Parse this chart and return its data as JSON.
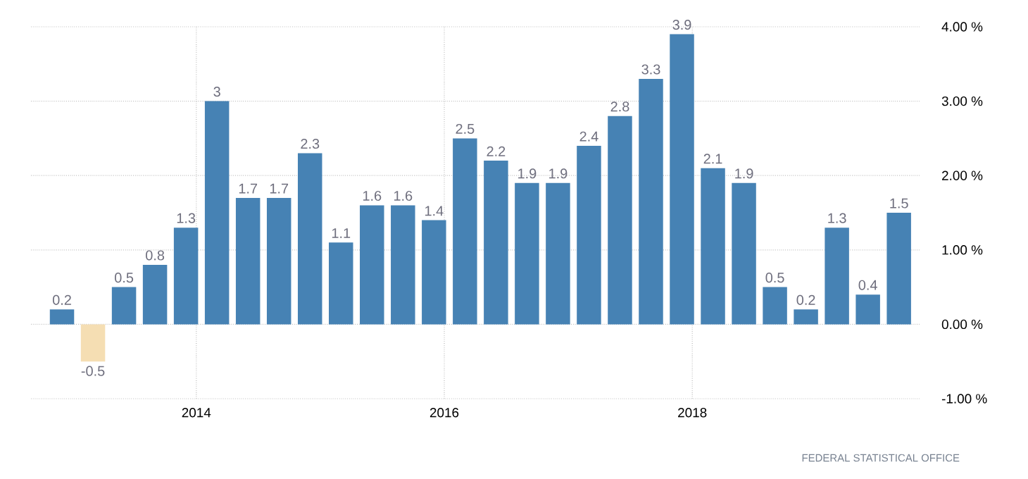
{
  "chart_data": {
    "type": "bar",
    "x": [
      "2012-12",
      "2013-03",
      "2013-06",
      "2013-09",
      "2013-12",
      "2014-03",
      "2014-06",
      "2014-09",
      "2014-12",
      "2015-03",
      "2015-06",
      "2015-09",
      "2015-12",
      "2016-03",
      "2016-06",
      "2016-09",
      "2016-12",
      "2017-03",
      "2017-06",
      "2017-09",
      "2017-12",
      "2018-03",
      "2018-06",
      "2018-09",
      "2018-12",
      "2019-03",
      "2019-06",
      "2019-09"
    ],
    "values": [
      0.2,
      -0.5,
      0.5,
      0.8,
      1.3,
      3,
      1.7,
      1.7,
      2.3,
      1.1,
      1.6,
      1.6,
      1.4,
      2.5,
      2.2,
      1.9,
      1.9,
      2.4,
      2.8,
      3.3,
      3.9,
      2.1,
      1.9,
      0.5,
      0.2,
      1.3,
      0.4,
      1.5
    ],
    "colors": [
      "#4682b4",
      "#f5deb3",
      "#4682b4",
      "#4682b4",
      "#4682b4",
      "#4682b4",
      "#4682b4",
      "#4682b4",
      "#4682b4",
      "#4682b4",
      "#4682b4",
      "#4682b4",
      "#4682b4",
      "#4682b4",
      "#4682b4",
      "#4682b4",
      "#4682b4",
      "#4682b4",
      "#4682b4",
      "#4682b4",
      "#4682b4",
      "#4682b4",
      "#4682b4",
      "#4682b4",
      "#4682b4",
      "#4682b4",
      "#4682b4",
      "#4682b4"
    ],
    "data_labels": true,
    "xlim": [
      "2012-09",
      "2019-11"
    ],
    "xticks": [
      "2014",
      "2016",
      "2018"
    ],
    "ylim": [
      -1,
      4
    ],
    "yticks": [
      {
        "value": -1,
        "label": "-1.00 %"
      },
      {
        "value": 0,
        "label": "0.00 %"
      },
      {
        "value": 1,
        "label": "1.00 %"
      },
      {
        "value": 2,
        "label": "2.00 %"
      },
      {
        "value": 3,
        "label": "3.00 %"
      },
      {
        "value": 4,
        "label": "4.00 %"
      }
    ],
    "grid": true,
    "annotations": [
      "FEDERAL STATISTICAL OFFICE"
    ]
  }
}
